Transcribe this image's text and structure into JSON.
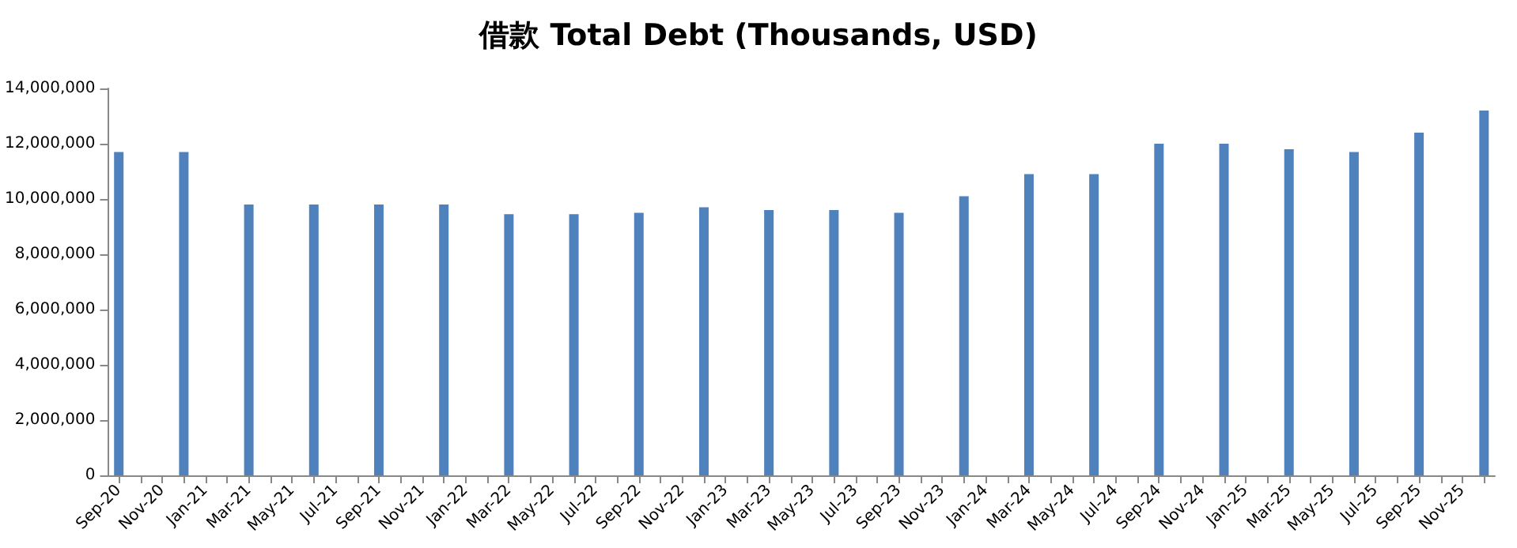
{
  "chart_data": {
    "type": "bar",
    "title": "借款 Total Debt (Thousands, USD)",
    "categories": [
      "Sep-20",
      null,
      "Nov-20",
      null,
      "Jan-21",
      null,
      "Mar-21",
      null,
      "May-21",
      null,
      "Jul-21",
      null,
      "Sep-21",
      null,
      "Nov-21",
      null,
      "Jan-22",
      null,
      "Mar-22",
      null,
      "May-22",
      null,
      "Jul-22",
      null,
      "Sep-22",
      null,
      "Nov-22",
      null,
      "Jan-23",
      null,
      "Mar-23",
      null,
      "May-23",
      null,
      "Jul-23",
      null,
      "Sep-23",
      null,
      "Nov-23",
      null,
      "Jan-24",
      null,
      "Mar-24",
      null,
      "May-24",
      null,
      "Jul-24",
      null,
      "Sep-24",
      null,
      "Nov-24",
      null,
      "Jan-25",
      null,
      "Mar-25",
      null,
      "May-25",
      null,
      "Jul-25",
      null,
      "Sep-25",
      null,
      "Nov-25",
      null
    ],
    "values": [
      11700000,
      null,
      null,
      11700000,
      null,
      null,
      9800000,
      null,
      null,
      9800000,
      null,
      null,
      9800000,
      null,
      null,
      9800000,
      null,
      null,
      9450000,
      null,
      null,
      9450000,
      null,
      null,
      9500000,
      null,
      null,
      9700000,
      null,
      null,
      9600000,
      null,
      null,
      9600000,
      null,
      null,
      9500000,
      null,
      null,
      10100000,
      null,
      null,
      10900000,
      null,
      null,
      10900000,
      null,
      null,
      12000000,
      null,
      null,
      12000000,
      null,
      null,
      11800000,
      null,
      null,
      11700000,
      null,
      null,
      12400000,
      null,
      null,
      13200000
    ],
    "color": "#4f81bd",
    "ylim": [
      0,
      14000000
    ],
    "yticks": [
      0,
      {
        "value": 2000000,
        "label": "2,000,000"
      },
      {
        "value": 4000000,
        "label": "4,000,000"
      },
      {
        "value": 6000000,
        "label": "6,000,000"
      },
      {
        "value": 8000000,
        "label": "8,000,000"
      },
      {
        "value": 10000000,
        "label": "10,000,000"
      },
      {
        "value": 12000000,
        "label": "12,000,000"
      },
      {
        "value": 14000000,
        "label": "14,000,000"
      }
    ],
    "grid": false
  }
}
